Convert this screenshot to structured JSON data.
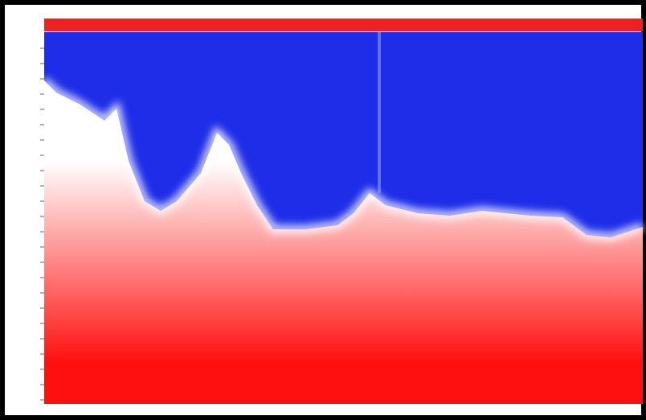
{
  "image": {
    "top_color": "#1e2ee8",
    "middle_color": "#ffffff",
    "bottom_color": "#ff1010",
    "header_color": "#f02020"
  }
}
